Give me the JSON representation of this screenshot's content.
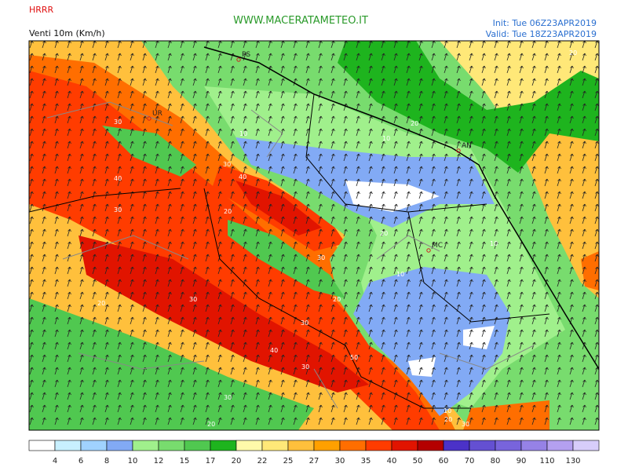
{
  "header": {
    "model": "HRRR",
    "field": "Venti 10m (Km/h)",
    "site": "WWW.MACERATAMETEO.IT",
    "init": "Init: Tue 06Z23APR2019",
    "valid": "Valid: Tue 18Z23APR2019"
  },
  "map": {
    "places": [
      "PS",
      "UR",
      "AN",
      "MC"
    ],
    "contours": [
      "20",
      "30",
      "40",
      "30",
      "30",
      "40",
      "20",
      "10",
      "10",
      "20",
      "30",
      "10",
      "10",
      "20",
      "30",
      "20",
      "40",
      "30",
      "30",
      "50",
      "10",
      "20",
      "30",
      "20",
      "30",
      "20"
    ]
  },
  "legend": {
    "labels": [
      4,
      6,
      8,
      10,
      12,
      15,
      17,
      20,
      22,
      25,
      27,
      30,
      35,
      40,
      50,
      60,
      70,
      80,
      90,
      110,
      130
    ],
    "colors": [
      "#ffffff",
      "#c8f0ff",
      "#a0d2ff",
      "#82aaf5",
      "#a0f08c",
      "#78dc6e",
      "#50c850",
      "#1eb41e",
      "#fffaaa",
      "#ffe878",
      "#ffc03c",
      "#ffa000",
      "#ff6e00",
      "#ff3c00",
      "#e11400",
      "#b40000",
      "#4b32c8",
      "#6450d2",
      "#7864dc",
      "#9682e6",
      "#b4a0f0",
      "#d7cdfa"
    ]
  }
}
